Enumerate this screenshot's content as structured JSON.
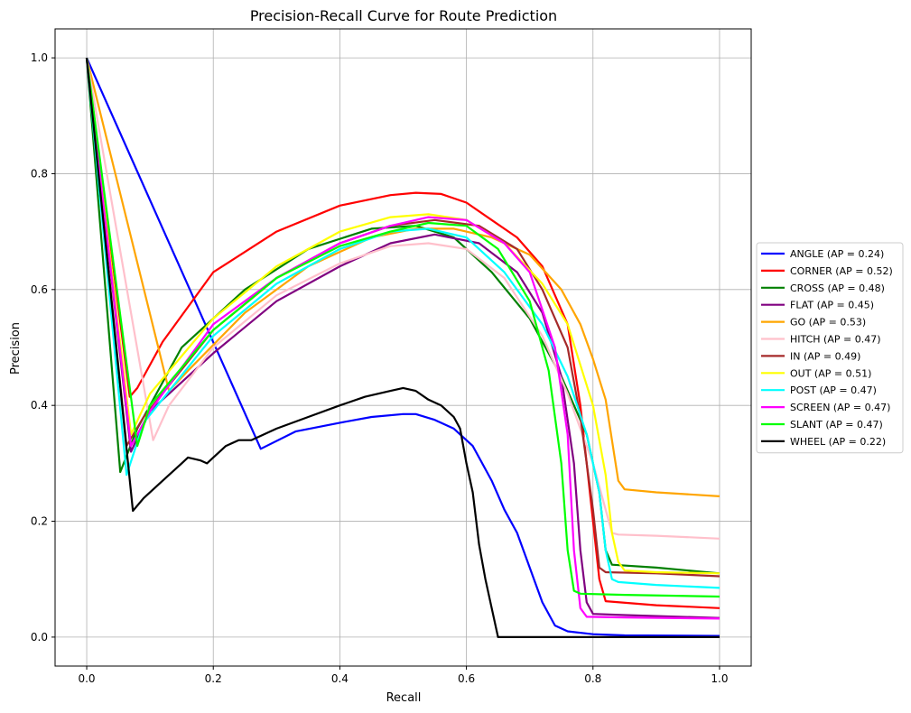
{
  "chart_data": {
    "type": "line",
    "title": "Precision-Recall Curve for Route Prediction",
    "xlabel": "Recall",
    "ylabel": "Precision",
    "xlim": [
      -0.05,
      1.05
    ],
    "ylim": [
      -0.05,
      1.05
    ],
    "xticks": [
      0.0,
      0.2,
      0.4,
      0.6,
      0.8,
      1.0
    ],
    "yticks": [
      0.0,
      0.2,
      0.4,
      0.6,
      0.8,
      1.0
    ],
    "xtick_labels": [
      "0.0",
      "0.2",
      "0.4",
      "0.6",
      "0.8",
      "1.0"
    ],
    "ytick_labels": [
      "0.0",
      "0.2",
      "0.4",
      "0.6",
      "0.8",
      "1.0"
    ],
    "grid": true,
    "legend_position": "center-right-outside",
    "series": [
      {
        "name": "ANGLE",
        "label": "ANGLE (AP = 0.24)",
        "color": "#0000ff",
        "x": [
          0.0,
          0.275,
          0.33,
          0.4,
          0.45,
          0.5,
          0.52,
          0.55,
          0.58,
          0.61,
          0.64,
          0.66,
          0.68,
          0.7,
          0.72,
          0.74,
          0.76,
          0.8,
          0.85,
          1.0
        ],
        "y": [
          1.0,
          0.325,
          0.355,
          0.37,
          0.38,
          0.385,
          0.385,
          0.375,
          0.36,
          0.33,
          0.27,
          0.22,
          0.18,
          0.12,
          0.06,
          0.02,
          0.01,
          0.005,
          0.003,
          0.002
        ]
      },
      {
        "name": "CORNER",
        "label": "CORNER (AP = 0.52)",
        "color": "#ff0000",
        "x": [
          0.0,
          0.068,
          0.08,
          0.12,
          0.2,
          0.3,
          0.4,
          0.48,
          0.52,
          0.56,
          0.6,
          0.64,
          0.68,
          0.72,
          0.76,
          0.78,
          0.8,
          0.81,
          0.82,
          0.9,
          1.0
        ],
        "y": [
          1.0,
          0.415,
          0.43,
          0.51,
          0.63,
          0.7,
          0.745,
          0.763,
          0.767,
          0.765,
          0.75,
          0.72,
          0.69,
          0.64,
          0.54,
          0.4,
          0.2,
          0.1,
          0.062,
          0.055,
          0.05
        ]
      },
      {
        "name": "CROSS",
        "label": "CROSS (AP = 0.48)",
        "color": "#008000",
        "x": [
          0.0,
          0.053,
          0.08,
          0.15,
          0.25,
          0.35,
          0.45,
          0.52,
          0.58,
          0.64,
          0.7,
          0.75,
          0.79,
          0.81,
          0.82,
          0.83,
          0.9,
          1.0
        ],
        "y": [
          1.0,
          0.285,
          0.36,
          0.5,
          0.6,
          0.67,
          0.705,
          0.71,
          0.69,
          0.63,
          0.55,
          0.45,
          0.35,
          0.25,
          0.15,
          0.125,
          0.12,
          0.11
        ]
      },
      {
        "name": "FLAT",
        "label": "FLAT (AP = 0.45)",
        "color": "#800080",
        "x": [
          0.0,
          0.07,
          0.1,
          0.2,
          0.3,
          0.4,
          0.48,
          0.55,
          0.62,
          0.68,
          0.72,
          0.75,
          0.77,
          0.78,
          0.79,
          0.8,
          0.85,
          1.0
        ],
        "y": [
          1.0,
          0.32,
          0.39,
          0.49,
          0.58,
          0.64,
          0.68,
          0.695,
          0.68,
          0.63,
          0.56,
          0.45,
          0.3,
          0.15,
          0.06,
          0.04,
          0.038,
          0.033
        ]
      },
      {
        "name": "GO",
        "label": "GO (AP = 0.53)",
        "color": "#ffa500",
        "x": [
          0.0,
          0.13,
          0.16,
          0.25,
          0.35,
          0.45,
          0.52,
          0.58,
          0.64,
          0.7,
          0.75,
          0.78,
          0.8,
          0.82,
          0.83,
          0.84,
          0.85,
          0.9,
          1.0
        ],
        "y": [
          1.0,
          0.425,
          0.46,
          0.56,
          0.64,
          0.69,
          0.705,
          0.705,
          0.69,
          0.66,
          0.6,
          0.54,
          0.48,
          0.41,
          0.34,
          0.27,
          0.255,
          0.25,
          0.243
        ]
      },
      {
        "name": "HITCH",
        "label": "HITCH (AP = 0.47)",
        "color": "#ffc0cb",
        "x": [
          0.0,
          0.105,
          0.13,
          0.2,
          0.3,
          0.4,
          0.48,
          0.54,
          0.6,
          0.66,
          0.72,
          0.76,
          0.8,
          0.82,
          0.83,
          0.84,
          0.9,
          1.0
        ],
        "y": [
          1.0,
          0.34,
          0.4,
          0.5,
          0.59,
          0.645,
          0.675,
          0.68,
          0.67,
          0.62,
          0.52,
          0.42,
          0.3,
          0.22,
          0.18,
          0.177,
          0.175,
          0.17
        ]
      },
      {
        "name": "IN",
        "label": "IN (AP = 0.49)",
        "color": "#a52a2a",
        "x": [
          0.0,
          0.063,
          0.09,
          0.2,
          0.3,
          0.4,
          0.48,
          0.55,
          0.62,
          0.68,
          0.72,
          0.76,
          0.78,
          0.8,
          0.81,
          0.82,
          0.9,
          1.0
        ],
        "y": [
          1.0,
          0.33,
          0.38,
          0.53,
          0.62,
          0.68,
          0.71,
          0.72,
          0.71,
          0.67,
          0.6,
          0.5,
          0.38,
          0.22,
          0.12,
          0.112,
          0.11,
          0.105
        ]
      },
      {
        "name": "OUT",
        "label": "OUT (AP = 0.51)",
        "color": "#ffff00",
        "x": [
          0.0,
          0.07,
          0.1,
          0.2,
          0.3,
          0.4,
          0.48,
          0.54,
          0.6,
          0.66,
          0.72,
          0.76,
          0.8,
          0.82,
          0.83,
          0.84,
          0.85,
          0.9,
          1.0
        ],
        "y": [
          1.0,
          0.35,
          0.42,
          0.55,
          0.64,
          0.7,
          0.725,
          0.73,
          0.72,
          0.68,
          0.61,
          0.54,
          0.4,
          0.28,
          0.18,
          0.13,
          0.115,
          0.112,
          0.11
        ]
      },
      {
        "name": "POST",
        "label": "POST (AP = 0.47)",
        "color": "#00ffff",
        "x": [
          0.0,
          0.063,
          0.09,
          0.2,
          0.3,
          0.4,
          0.48,
          0.54,
          0.6,
          0.66,
          0.72,
          0.76,
          0.79,
          0.81,
          0.82,
          0.83,
          0.84,
          0.9,
          1.0
        ],
        "y": [
          1.0,
          0.28,
          0.37,
          0.52,
          0.61,
          0.67,
          0.7,
          0.705,
          0.69,
          0.63,
          0.54,
          0.45,
          0.35,
          0.25,
          0.15,
          0.1,
          0.095,
          0.09,
          0.085
        ]
      },
      {
        "name": "SCREEN",
        "label": "SCREEN (AP = 0.47)",
        "color": "#ff00ff",
        "x": [
          0.0,
          0.07,
          0.1,
          0.2,
          0.3,
          0.4,
          0.48,
          0.54,
          0.6,
          0.66,
          0.7,
          0.74,
          0.76,
          0.77,
          0.78,
          0.79,
          0.85,
          1.0
        ],
        "y": [
          1.0,
          0.33,
          0.39,
          0.54,
          0.62,
          0.68,
          0.71,
          0.725,
          0.72,
          0.68,
          0.63,
          0.5,
          0.35,
          0.15,
          0.05,
          0.035,
          0.034,
          0.032
        ]
      },
      {
        "name": "SLANT",
        "label": "SLANT (AP = 0.47)",
        "color": "#00ff00",
        "x": [
          0.0,
          0.08,
          0.1,
          0.2,
          0.3,
          0.4,
          0.48,
          0.54,
          0.6,
          0.65,
          0.7,
          0.73,
          0.75,
          0.76,
          0.77,
          0.78,
          0.85,
          1.0
        ],
        "y": [
          1.0,
          0.33,
          0.4,
          0.53,
          0.62,
          0.675,
          0.7,
          0.715,
          0.71,
          0.67,
          0.58,
          0.46,
          0.3,
          0.15,
          0.08,
          0.075,
          0.073,
          0.07
        ]
      },
      {
        "name": "WHEEL",
        "label": "WHEEL (AP = 0.22)",
        "color": "#000000",
        "x": [
          0.0,
          0.073,
          0.09,
          0.12,
          0.15,
          0.16,
          0.18,
          0.19,
          0.22,
          0.24,
          0.26,
          0.3,
          0.35,
          0.4,
          0.44,
          0.48,
          0.5,
          0.52,
          0.54,
          0.56,
          0.58,
          0.59,
          0.6,
          0.61,
          0.62,
          0.63,
          0.64,
          0.65,
          0.7,
          1.0
        ],
        "y": [
          1.0,
          0.218,
          0.24,
          0.27,
          0.3,
          0.31,
          0.305,
          0.3,
          0.33,
          0.34,
          0.34,
          0.36,
          0.38,
          0.4,
          0.415,
          0.425,
          0.43,
          0.425,
          0.41,
          0.4,
          0.38,
          0.36,
          0.3,
          0.25,
          0.16,
          0.1,
          0.05,
          0.0,
          0.0,
          0.0
        ]
      }
    ]
  }
}
